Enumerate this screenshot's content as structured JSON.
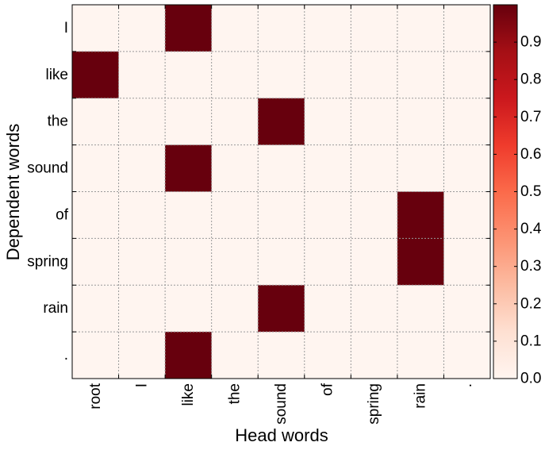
{
  "chart_data": {
    "type": "heatmap",
    "xlabel": "Head words",
    "ylabel": "Dependent words",
    "x_categories": [
      "root",
      "I",
      "like",
      "the",
      "sound",
      "of",
      "spring",
      "rain",
      "."
    ],
    "y_categories": [
      "I",
      "like",
      "the",
      "sound",
      "of",
      "spring",
      "rain",
      "."
    ],
    "values": [
      [
        0,
        0,
        1,
        0,
        0,
        0,
        0,
        0,
        0
      ],
      [
        1,
        0,
        0,
        0,
        0,
        0,
        0,
        0,
        0
      ],
      [
        0,
        0,
        0,
        0,
        1,
        0,
        0,
        0,
        0
      ],
      [
        0,
        0,
        1,
        0,
        0,
        0,
        0,
        0,
        0
      ],
      [
        0,
        0,
        0,
        0,
        0,
        0,
        0,
        1,
        0
      ],
      [
        0,
        0,
        0,
        0,
        0,
        0,
        0,
        1,
        0
      ],
      [
        0,
        0,
        0,
        0,
        1,
        0,
        0,
        0,
        0
      ],
      [
        0,
        0,
        1,
        0,
        0,
        0,
        0,
        0,
        0
      ]
    ],
    "colormap": "Reds",
    "colorbar": {
      "ticks": [
        "0.0",
        "0.1",
        "0.2",
        "0.3",
        "0.4",
        "0.5",
        "0.6",
        "0.7",
        "0.8",
        "0.9"
      ],
      "range": [
        0,
        1
      ]
    },
    "grid": true
  }
}
